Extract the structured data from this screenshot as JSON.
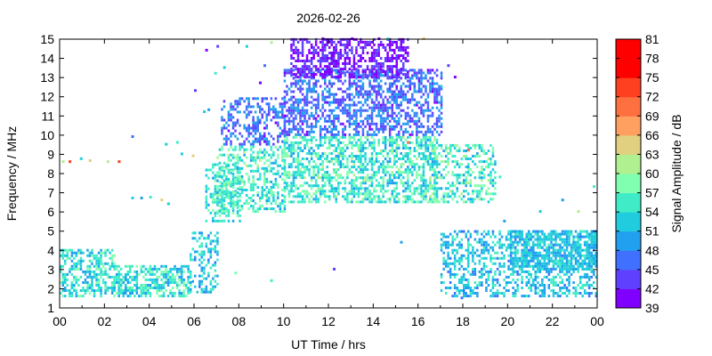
{
  "chart_data": {
    "type": "heatmap",
    "title": "2026-02-26",
    "xlabel": "UT Time / hrs",
    "ylabel": "Frequency / MHz",
    "colorbar_label": "Signal Amplitude / dB",
    "xlim": [
      0,
      24
    ],
    "ylim": [
      1,
      15
    ],
    "x_ticks": [
      "00",
      "02",
      "04",
      "06",
      "08",
      "10",
      "12",
      "14",
      "16",
      "18",
      "20",
      "22",
      "00"
    ],
    "y_ticks": [
      "1",
      "2",
      "3",
      "4",
      "5",
      "6",
      "7",
      "8",
      "9",
      "10",
      "11",
      "12",
      "13",
      "14",
      "15"
    ],
    "colorbar_ticks": [
      "39",
      "42",
      "45",
      "48",
      "51",
      "54",
      "57",
      "60",
      "63",
      "66",
      "69",
      "72",
      "75",
      "78",
      "81"
    ],
    "colorbar_colors": [
      "#8000ff",
      "#6040ff",
      "#4070ff",
      "#20a0ee",
      "#20ccdd",
      "#40ecc8",
      "#80ffb0",
      "#b0f090",
      "#e0d080",
      "#ffa060",
      "#ff7040",
      "#ff4020",
      "#ff0000",
      "#ff0000"
    ],
    "grid": false,
    "regions": [
      {
        "x": [
          0.0,
          2.5
        ],
        "f": [
          1.6,
          4.0
        ],
        "amp": [
          50,
          60
        ],
        "density": 0.55
      },
      {
        "x": [
          2.5,
          5.8
        ],
        "f": [
          1.6,
          3.2
        ],
        "amp": [
          50,
          61
        ],
        "density": 0.6
      },
      {
        "x": [
          5.8,
          7.0
        ],
        "f": [
          1.8,
          5.0
        ],
        "amp": [
          48,
          58
        ],
        "density": 0.35
      },
      {
        "x": [
          6.5,
          8.0
        ],
        "f": [
          5.5,
          8.5
        ],
        "amp": [
          51,
          60
        ],
        "density": 0.45
      },
      {
        "x": [
          7.0,
          10.0
        ],
        "f": [
          6.0,
          9.5
        ],
        "amp": [
          51,
          62
        ],
        "density": 0.45
      },
      {
        "x": [
          7.2,
          10.0
        ],
        "f": [
          9.5,
          12.0
        ],
        "amp": [
          42,
          52
        ],
        "density": 0.4
      },
      {
        "x": [
          10.0,
          16.8
        ],
        "f": [
          6.5,
          10.0
        ],
        "amp": [
          51,
          62
        ],
        "density": 0.55
      },
      {
        "x": [
          10.0,
          17.0
        ],
        "f": [
          10.0,
          13.5
        ],
        "amp": [
          42,
          52
        ],
        "density": 0.55
      },
      {
        "x": [
          10.3,
          15.5
        ],
        "f": [
          13.0,
          15.0
        ],
        "amp": [
          39,
          45
        ],
        "density": 0.55
      },
      {
        "x": [
          16.5,
          19.5
        ],
        "f": [
          6.5,
          9.5
        ],
        "amp": [
          51,
          63
        ],
        "density": 0.4
      },
      {
        "x": [
          17.0,
          24.0
        ],
        "f": [
          1.6,
          5.0
        ],
        "amp": [
          48,
          58
        ],
        "density": 0.45
      },
      {
        "x": [
          20.0,
          24.0
        ],
        "f": [
          3.0,
          5.0
        ],
        "amp": [
          50,
          56
        ],
        "density": 0.55
      }
    ],
    "sparse_points": [
      [
        0.1,
        8.6,
        63
      ],
      [
        0.4,
        8.6,
        75
      ],
      [
        0.9,
        8.75,
        54
      ],
      [
        1.3,
        8.65,
        66
      ],
      [
        2.1,
        8.6,
        63
      ],
      [
        2.6,
        8.6,
        75
      ],
      [
        3.2,
        6.7,
        54
      ],
      [
        3.6,
        6.7,
        51
      ],
      [
        4.0,
        6.75,
        57
      ],
      [
        4.5,
        6.6,
        66
      ],
      [
        4.8,
        6.4,
        54
      ],
      [
        3.2,
        9.9,
        48
      ],
      [
        4.7,
        9.5,
        54
      ],
      [
        5.2,
        9.6,
        57
      ],
      [
        5.4,
        9.0,
        54
      ],
      [
        5.9,
        8.9,
        66
      ],
      [
        6.4,
        11.2,
        54
      ],
      [
        6.6,
        11.3,
        51
      ],
      [
        6.9,
        13.2,
        57
      ],
      [
        7.3,
        13.5,
        54
      ],
      [
        9.4,
        14.8,
        63
      ],
      [
        9.1,
        13.6,
        48
      ],
      [
        8.9,
        12.7,
        42
      ],
      [
        6.5,
        14.4,
        39
      ],
      [
        7.0,
        14.6,
        45
      ],
      [
        12.2,
        3.0,
        45
      ],
      [
        9.4,
        2.4,
        57
      ],
      [
        7.8,
        2.8,
        60
      ],
      [
        6.0,
        12.3,
        45
      ],
      [
        23.8,
        7.3,
        57
      ],
      [
        23.1,
        6.0,
        63
      ],
      [
        22.4,
        6.6,
        51
      ],
      [
        18.8,
        8.0,
        54
      ],
      [
        19.6,
        7.8,
        57
      ],
      [
        15.5,
        9.6,
        72
      ],
      [
        18.2,
        9.2,
        72
      ],
      [
        14.6,
        15.0,
        57
      ],
      [
        16.2,
        15.0,
        66
      ],
      [
        17.3,
        13.6,
        45
      ],
      [
        17.6,
        13.0,
        42
      ],
      [
        11.7,
        15.0,
        39
      ],
      [
        13.0,
        15.0,
        42
      ],
      [
        14.2,
        15.0,
        39
      ],
      [
        8.3,
        14.6,
        54
      ],
      [
        21.4,
        6.0,
        54
      ],
      [
        19.8,
        5.5,
        51
      ],
      [
        15.2,
        4.4,
        51
      ],
      [
        17.9,
        1.5,
        48
      ]
    ]
  }
}
